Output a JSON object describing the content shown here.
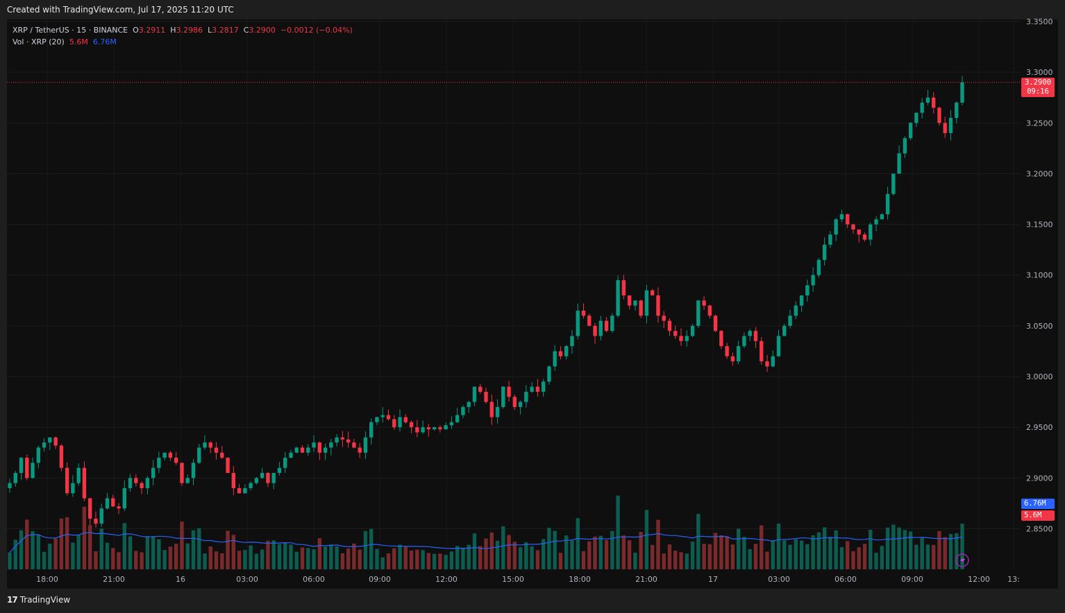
{
  "header": {
    "created_text": "Created with TradingView.com, Jul 17, 2025 11:20 UTC"
  },
  "legend": {
    "symbol": "XRP / TetherUS · 15 · BINANCE",
    "o_label": "O",
    "o_value": "3.2911",
    "h_label": "H",
    "h_value": "3.2986",
    "l_label": "L",
    "l_value": "3.2817",
    "c_label": "C",
    "c_value": "3.2900",
    "change": "−0.0012 (−0.04%)",
    "vol_label": "Vol · XRP (20)",
    "vol_value": "5.6M",
    "vol_ma_value": "6.76M"
  },
  "price_tag": {
    "price": "3.2900",
    "countdown": "09:16"
  },
  "vol_tags": {
    "ma": "6.76M",
    "vol": "5.6M"
  },
  "footer": {
    "brand": "TradingView",
    "logo": "17"
  },
  "colors": {
    "up": "#089981",
    "down": "#f23645",
    "ma": "#2962ff",
    "bg": "#0f0f0f",
    "grid": "#1f1f1f"
  },
  "chart_data": {
    "type": "candlestick",
    "title": "XRP / TetherUS · 15 · BINANCE",
    "y_ticks": [
      "3.3500",
      "3.3000",
      "3.2500",
      "3.2000",
      "3.1500",
      "3.1000",
      "3.0500",
      "3.0000",
      "2.9500",
      "2.9000",
      "2.8500"
    ],
    "ylim": [
      2.81,
      3.35
    ],
    "x_ticks": [
      "18:00",
      "21:00",
      "16",
      "03:00",
      "06:00",
      "09:00",
      "12:00",
      "15:00",
      "18:00",
      "21:00",
      "17",
      "03:00",
      "06:00",
      "09:00",
      "12:00",
      "13:"
    ],
    "candles_close": [
      2.895,
      2.905,
      2.92,
      2.9,
      2.915,
      2.93,
      2.935,
      2.94,
      2.932,
      2.91,
      2.885,
      2.895,
      2.91,
      2.88,
      2.86,
      2.855,
      2.87,
      2.88,
      2.872,
      2.87,
      2.89,
      2.9,
      2.895,
      2.89,
      2.9,
      2.91,
      2.92,
      2.925,
      2.92,
      2.915,
      2.895,
      2.9,
      2.915,
      2.93,
      2.935,
      2.93,
      2.925,
      2.92,
      2.905,
      2.89,
      2.885,
      2.89,
      2.895,
      2.9,
      2.905,
      2.895,
      2.905,
      2.91,
      2.92,
      2.925,
      2.93,
      2.925,
      2.93,
      2.935,
      2.925,
      2.93,
      2.935,
      2.94,
      2.938,
      2.935,
      2.93,
      2.925,
      2.94,
      2.955,
      2.96,
      2.962,
      2.958,
      2.95,
      2.96,
      2.955,
      2.95,
      2.945,
      2.95,
      2.948,
      2.95,
      2.948,
      2.952,
      2.955,
      2.962,
      2.97,
      2.975,
      2.99,
      2.985,
      2.975,
      2.96,
      2.97,
      2.99,
      2.98,
      2.97,
      2.975,
      2.985,
      2.99,
      2.985,
      2.995,
      3.01,
      3.025,
      3.02,
      3.03,
      3.04,
      3.065,
      3.06,
      3.05,
      3.04,
      3.055,
      3.045,
      3.06,
      3.095,
      3.08,
      3.07,
      3.075,
      3.06,
      3.085,
      3.08,
      3.06,
      3.055,
      3.045,
      3.04,
      3.035,
      3.04,
      3.05,
      3.075,
      3.07,
      3.06,
      3.045,
      3.03,
      3.02,
      3.015,
      3.03,
      3.04,
      3.045,
      3.035,
      3.015,
      3.01,
      3.02,
      3.04,
      3.05,
      3.06,
      3.07,
      3.08,
      3.09,
      3.1,
      3.115,
      3.13,
      3.14,
      3.155,
      3.16,
      3.15,
      3.145,
      3.14,
      3.135,
      3.15,
      3.155,
      3.16,
      3.18,
      3.2,
      3.22,
      3.235,
      3.25,
      3.26,
      3.27,
      3.275,
      3.265,
      3.25,
      3.24,
      3.255,
      3.27,
      3.29
    ],
    "last_price": 3.29,
    "volume_unit": "M",
    "volume_ma_last": 6.76,
    "volume_last": 5.6
  }
}
